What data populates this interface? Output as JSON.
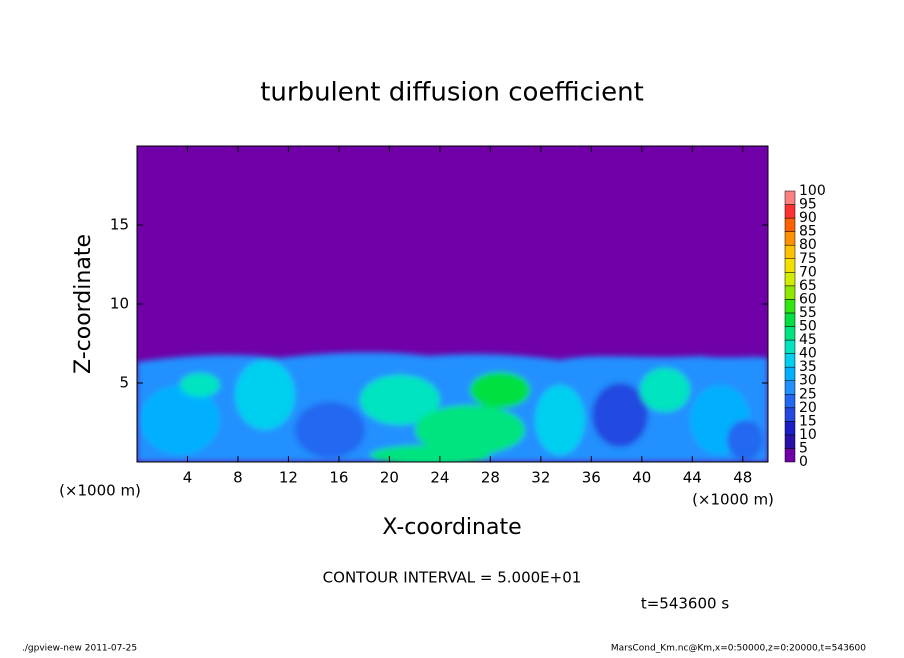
{
  "chart_data": {
    "type": "contour",
    "title": "turbulent diffusion coefficient",
    "x_label": "X-coordinate",
    "y_label": "Z-coordinate",
    "x_unit": "(×1000 m)",
    "y_unit": "(×1000 m)",
    "xlim": [
      0,
      50
    ],
    "ylim": [
      0,
      20
    ],
    "xticks": [
      4,
      8,
      12,
      16,
      20,
      24,
      28,
      32,
      36,
      40,
      44,
      48
    ],
    "yticks": [
      5,
      10,
      15
    ],
    "colorbar": {
      "levels": [
        0,
        5,
        10,
        15,
        20,
        25,
        30,
        35,
        40,
        45,
        50,
        55,
        60,
        65,
        70,
        75,
        80,
        85,
        90,
        95,
        100
      ],
      "colors": [
        "#7000a8",
        "#2a10a8",
        "#1c1cc8",
        "#2448e0",
        "#2068f0",
        "#2090ff",
        "#00b0ff",
        "#00d0f0",
        "#00e4c0",
        "#00e480",
        "#00e040",
        "#30e810",
        "#90e800",
        "#d0ec00",
        "#f4e000",
        "#ffc000",
        "#ff9000",
        "#ff6000",
        "#ff3030",
        "#ff8080"
      ]
    },
    "contour_interval": "CONTOUR INTERVAL = 5.000E+01",
    "time_label": "t=543600 s",
    "footer_left": "./gpview-new  2011-07-25",
    "footer_right": "MarsCond_Km.nc@Km,x=0:50000,z=0:20000,t=543600"
  }
}
